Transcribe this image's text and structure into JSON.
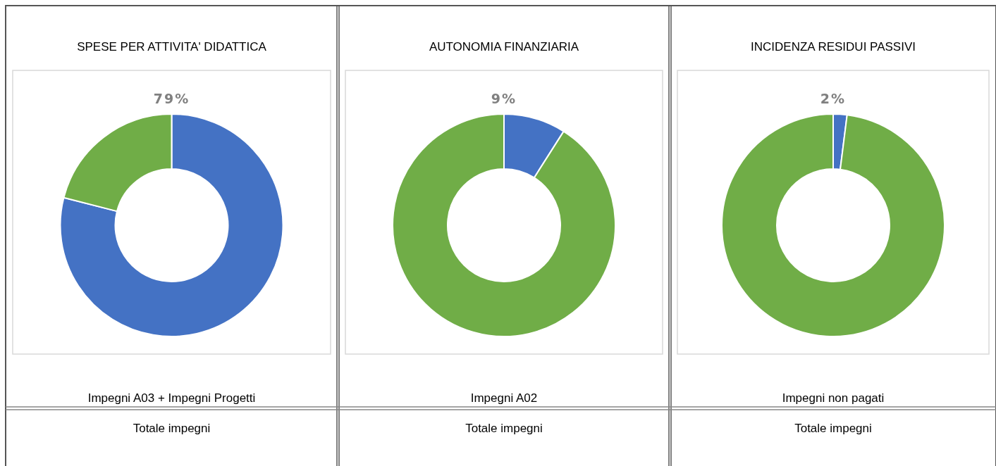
{
  "chart_data": [
    {
      "type": "donut",
      "title": "SPESE PER ATTIVITA' DIDATTICA",
      "categories": [
        null,
        null
      ],
      "values": [
        79,
        21
      ],
      "colors": [
        "#4472c4",
        "#70ad47"
      ],
      "value_labels": [
        "79%",
        null
      ],
      "annotations": [
        "Impegni A03 + Impegni Progetti",
        "Totale impegni"
      ]
    },
    {
      "type": "donut",
      "title": "AUTONOMIA  FINANZIARIA",
      "categories": [
        null,
        null
      ],
      "values": [
        9,
        91
      ],
      "colors": [
        "#4472c4",
        "#70ad47"
      ],
      "value_labels": [
        "9%",
        null
      ],
      "annotations": [
        "Impegni A02",
        "Totale impegni"
      ]
    },
    {
      "type": "donut",
      "title": "INCIDENZA  RESIDUI PASSIVI",
      "categories": [
        null,
        null
      ],
      "values": [
        2,
        98
      ],
      "colors": [
        "#4472c4",
        "#70ad47"
      ],
      "value_labels": [
        "2%",
        null
      ],
      "annotations": [
        "Impegni non pagati",
        "Totale impegni"
      ]
    }
  ]
}
